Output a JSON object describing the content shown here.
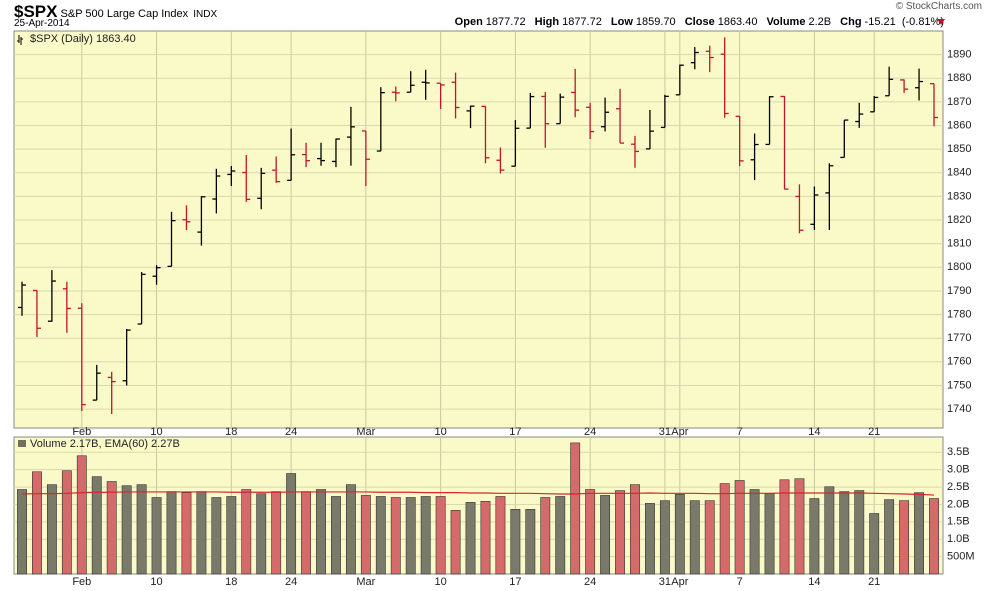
{
  "header": {
    "symbol": "$SPX",
    "name": "S&P 500 Large Cap Index",
    "exchange": "INDX",
    "date": "25-Apr-2014",
    "copyright": "© StockCharts.com",
    "quote": {
      "open_label": "Open",
      "open": "1877.72",
      "high_label": "High",
      "high": "1877.72",
      "low_label": "Low",
      "low": "1859.70",
      "close_label": "Close",
      "close": "1863.40",
      "volume_label": "Volume",
      "volume": "2.2B",
      "chg_label": "Chg",
      "chg": "-15.21",
      "chg_pct": "(-0.81%)"
    }
  },
  "chart_data": [
    {
      "type": "ohlc",
      "legend": "$SPX (Daily) 1863.40",
      "up_color": "#000000",
      "down_color": "#c0142a",
      "grid": true,
      "categories": [
        null,
        null,
        null,
        null,
        "Feb",
        null,
        null,
        null,
        null,
        "10",
        null,
        null,
        null,
        null,
        "18",
        null,
        null,
        null,
        "24",
        null,
        null,
        null,
        null,
        "Mar",
        null,
        null,
        null,
        null,
        "10",
        null,
        null,
        null,
        null,
        "17",
        null,
        null,
        null,
        null,
        "24",
        null,
        null,
        null,
        null,
        "31",
        "Apr",
        null,
        null,
        null,
        "7",
        null,
        null,
        null,
        null,
        "14",
        null,
        null,
        null,
        "21",
        null,
        null,
        null,
        null
      ],
      "open": [
        1783.0,
        1790.2,
        1777.2,
        1790.9,
        1782.7,
        1743.8,
        1753.4,
        1752.0,
        1776.0,
        1796.2,
        1800.4,
        1820.1,
        1814.9,
        1828.9,
        1839.3,
        1840.1,
        1829.2,
        1841.1,
        1836.8,
        1847.7,
        1846.0,
        1844.8,
        1855.1,
        1857.7,
        1849.2,
        1874.1,
        1874.1,
        1878.3,
        1877.9,
        1878.3,
        1866.2,
        1868.1,
        1845.3,
        1842.8,
        1858.9,
        1872.3,
        1860.8,
        1874.0,
        1867.7,
        1859.5,
        1867.1,
        1852.1,
        1850.1,
        1859.2,
        1873.0,
        1886.6,
        1891.4,
        1890.2,
        1863.9,
        1845.5,
        1852.0,
        1872.3,
        1830.0,
        1818.2,
        1831.5,
        1846.5,
        1861.7,
        1865.8,
        1872.6,
        1879.3,
        1876.0,
        1877.72
      ],
      "high": [
        1793.9,
        1790.2,
        1798.8,
        1793.9,
        1784.8,
        1758.7,
        1755.8,
        1773.9,
        1798.0,
        1800.9,
        1823.5,
        1826.2,
        1830.1,
        1841.7,
        1842.9,
        1847.5,
        1842.1,
        1846.9,
        1858.7,
        1852.7,
        1852.7,
        1854.5,
        1867.9,
        1857.7,
        1876.2,
        1876.5,
        1883.0,
        1883.6,
        1877.9,
        1882.4,
        1868.4,
        1868.2,
        1850.7,
        1862.3,
        1873.8,
        1874.2,
        1873.5,
        1883.97,
        1869.6,
        1871.8,
        1875.5,
        1855.6,
        1866.6,
        1873.0,
        1885.8,
        1893.2,
        1893.8,
        1897.3,
        1864.0,
        1856.6,
        1872.4,
        1872.5,
        1835.1,
        1834.2,
        1844.0,
        1862.3,
        1869.6,
        1872.5,
        1884.9,
        1879.5,
        1884.1,
        1877.72
      ],
      "low": [
        1779.5,
        1770.5,
        1777.0,
        1772.3,
        1739.2,
        1743.8,
        1737.9,
        1750.0,
        1776.0,
        1792.6,
        1800.4,
        1815.8,
        1809.2,
        1822.8,
        1834.4,
        1827.7,
        1824.6,
        1835.8,
        1836.8,
        1842.4,
        1843.0,
        1842.4,
        1843.0,
        1834.4,
        1849.2,
        1870.3,
        1874.1,
        1870.9,
        1867.0,
        1863.0,
        1858.9,
        1844.0,
        1839.7,
        1842.8,
        1858.9,
        1850.6,
        1860.8,
        1863.5,
        1854.3,
        1857.5,
        1852.6,
        1842.1,
        1850.1,
        1859.2,
        1873.0,
        1883.8,
        1882.6,
        1863.3,
        1842.8,
        1836.9,
        1852.0,
        1833.0,
        1814.4,
        1815.8,
        1815.8,
        1846.5,
        1859.0,
        1865.8,
        1872.6,
        1873.8,
        1870.6,
        1859.7
      ],
      "close": [
        1792.5,
        1774.2,
        1794.19,
        1782.59,
        1741.89,
        1755.2,
        1751.64,
        1773.43,
        1797.02,
        1799.84,
        1819.75,
        1819.26,
        1829.83,
        1838.63,
        1840.76,
        1828.75,
        1839.78,
        1836.25,
        1847.61,
        1845.12,
        1845.16,
        1854.29,
        1859.45,
        1845.73,
        1873.91,
        1873.81,
        1877.03,
        1878.04,
        1877.17,
        1867.63,
        1868.2,
        1846.34,
        1841.13,
        1858.83,
        1872.25,
        1860.77,
        1872.01,
        1866.52,
        1857.44,
        1865.62,
        1852.56,
        1849.04,
        1857.62,
        1872.34,
        1885.52,
        1890.9,
        1888.77,
        1865.09,
        1845.04,
        1851.96,
        1872.18,
        1833.08,
        1815.69,
        1830.61,
        1842.98,
        1862.31,
        1864.85,
        1871.89,
        1879.55,
        1875.39,
        1878.61,
        1863.4
      ],
      "ylim": [
        1732,
        1900
      ],
      "yticks": [
        1740,
        1750,
        1760,
        1770,
        1780,
        1790,
        1800,
        1810,
        1820,
        1830,
        1840,
        1850,
        1860,
        1870,
        1880,
        1890
      ]
    },
    {
      "type": "volume",
      "legend": "Volume 2.17B, EMA(60) 2.27B",
      "ema_color": "#d4262e",
      "grid": true,
      "values": [
        2.43,
        2.94,
        2.57,
        2.97,
        3.4,
        2.8,
        2.66,
        2.54,
        2.57,
        2.2,
        2.37,
        2.34,
        2.37,
        2.2,
        2.23,
        2.43,
        2.31,
        2.37,
        2.89,
        2.37,
        2.43,
        2.23,
        2.57,
        2.26,
        2.23,
        2.2,
        2.2,
        2.23,
        2.23,
        1.83,
        2.06,
        2.09,
        2.23,
        1.86,
        1.86,
        2.2,
        2.23,
        3.77,
        2.43,
        2.26,
        2.4,
        2.57,
        2.03,
        2.11,
        2.29,
        2.11,
        2.11,
        2.6,
        2.69,
        2.43,
        2.31,
        2.71,
        2.74,
        2.17,
        2.51,
        2.37,
        2.4,
        1.74,
        2.14,
        2.11,
        2.34,
        2.17
      ],
      "ema_values": [
        2.3,
        2.31,
        2.31,
        2.32,
        2.34,
        2.35,
        2.35,
        2.36,
        2.36,
        2.36,
        2.36,
        2.36,
        2.36,
        2.36,
        2.35,
        2.35,
        2.35,
        2.35,
        2.36,
        2.36,
        2.36,
        2.36,
        2.36,
        2.36,
        2.35,
        2.35,
        2.35,
        2.34,
        2.34,
        2.34,
        2.33,
        2.33,
        2.32,
        2.32,
        2.32,
        2.31,
        2.3,
        2.3,
        2.32,
        2.32,
        2.32,
        2.32,
        2.33,
        2.32,
        2.32,
        2.32,
        2.31,
        2.31,
        2.32,
        2.32,
        2.32,
        2.33,
        2.33,
        2.33,
        2.33,
        2.33,
        2.33,
        2.32,
        2.31,
        2.3,
        2.29,
        2.27
      ],
      "ylim": [
        0,
        3.94
      ],
      "yticks": [
        {
          "value": 0.5,
          "label": "500M"
        },
        {
          "value": 1,
          "label": "1.0B"
        },
        {
          "value": 1.5,
          "label": "1.5B"
        },
        {
          "value": 2,
          "label": "2.0B"
        },
        {
          "value": 2.5,
          "label": "2.5B"
        },
        {
          "value": 3,
          "label": "3.0B"
        },
        {
          "value": 3.5,
          "label": "3.5B"
        }
      ]
    }
  ]
}
